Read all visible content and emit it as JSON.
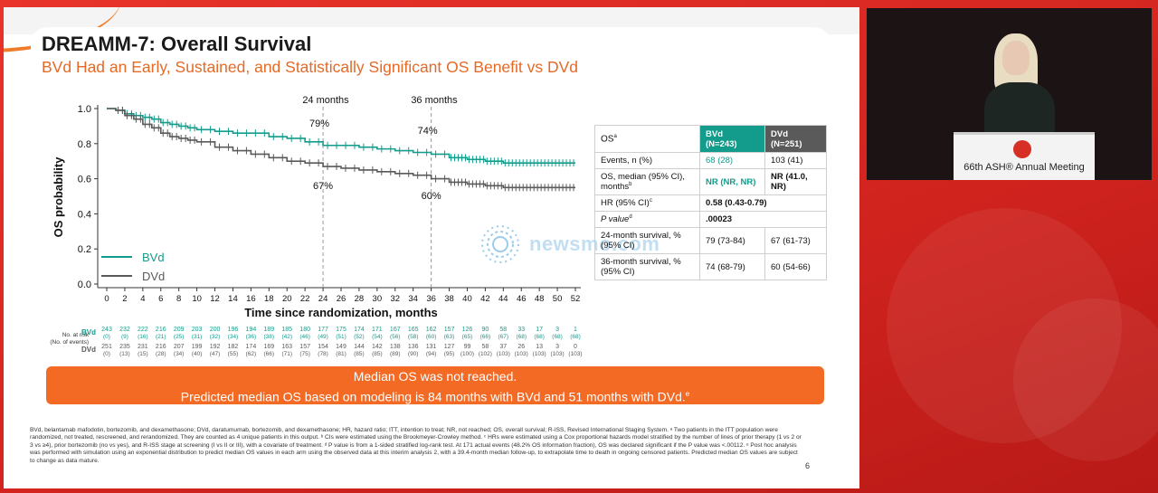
{
  "slide": {
    "title": "DREAMM-7: Overall Survival",
    "subtitle": "BVd Had an Early, Sustained, and Statistically Significant OS Benefit vs DVd",
    "page_number": "6",
    "accent_color": "#f26a24",
    "bvd_color": "#139c8b",
    "dvd_color": "#5a5a5a"
  },
  "chart_data": {
    "type": "line",
    "title": "",
    "xlabel": "Time since randomization, months",
    "ylabel": "OS probability",
    "xlim": [
      0,
      52
    ],
    "ylim": [
      0,
      1.0
    ],
    "x_ticks": [
      0,
      2,
      4,
      6,
      8,
      10,
      12,
      14,
      16,
      18,
      20,
      22,
      24,
      26,
      28,
      30,
      32,
      34,
      36,
      38,
      40,
      42,
      44,
      46,
      48,
      50,
      52
    ],
    "y_ticks": [
      "0.0",
      "0.2",
      "0.4",
      "0.6",
      "0.8",
      "1.0"
    ],
    "legend": [
      "BVd",
      "DVd"
    ],
    "legend_position": "bottom-left",
    "series": [
      {
        "name": "BVd",
        "color": "#139c8b",
        "x": [
          0,
          1,
          2,
          3,
          4,
          5,
          6,
          7,
          8,
          9,
          10,
          12,
          14,
          16,
          18,
          20,
          22,
          24,
          26,
          28,
          30,
          32,
          34,
          36,
          38,
          40,
          42,
          44,
          46,
          48,
          50,
          52
        ],
        "y": [
          1.0,
          0.99,
          0.97,
          0.96,
          0.95,
          0.94,
          0.92,
          0.91,
          0.9,
          0.89,
          0.88,
          0.87,
          0.86,
          0.86,
          0.84,
          0.83,
          0.81,
          0.79,
          0.79,
          0.78,
          0.77,
          0.76,
          0.75,
          0.74,
          0.72,
          0.71,
          0.7,
          0.69,
          0.69,
          0.69,
          0.69,
          0.69
        ]
      },
      {
        "name": "DVd",
        "color": "#5a5a5a",
        "x": [
          0,
          1,
          2,
          3,
          4,
          5,
          6,
          7,
          8,
          9,
          10,
          12,
          14,
          16,
          18,
          20,
          22,
          24,
          26,
          28,
          30,
          32,
          34,
          36,
          38,
          40,
          42,
          44,
          46,
          48,
          50,
          52
        ],
        "y": [
          1.0,
          0.99,
          0.96,
          0.94,
          0.91,
          0.89,
          0.86,
          0.84,
          0.83,
          0.82,
          0.81,
          0.78,
          0.76,
          0.74,
          0.72,
          0.7,
          0.69,
          0.67,
          0.66,
          0.65,
          0.64,
          0.63,
          0.62,
          0.6,
          0.58,
          0.57,
          0.56,
          0.55,
          0.55,
          0.55,
          0.55,
          0.55
        ]
      }
    ],
    "annotations": [
      {
        "label": "24 months",
        "x": 24,
        "bvd": "79%",
        "dvd": "67%"
      },
      {
        "label": "36 months",
        "x": 36,
        "bvd": "74%",
        "dvd": "60%"
      }
    ],
    "risk_table": {
      "header": "No. at risk",
      "header_sub": "(No. of events)",
      "rows": [
        {
          "name": "BVd",
          "n": [
            "243",
            "232",
            "222",
            "216",
            "209",
            "203",
            "200",
            "196",
            "194",
            "189",
            "185",
            "180",
            "177",
            "175",
            "174",
            "171",
            "167",
            "165",
            "162",
            "157",
            "126",
            "90",
            "58",
            "33",
            "17",
            "3",
            "1"
          ],
          "events": [
            "(0)",
            "(9)",
            "(16)",
            "(21)",
            "(25)",
            "(31)",
            "(32)",
            "(34)",
            "(36)",
            "(38)",
            "(42)",
            "(46)",
            "(49)",
            "(51)",
            "(52)",
            "(54)",
            "(56)",
            "(58)",
            "(60)",
            "(63)",
            "(65)",
            "(66)",
            "(67)",
            "(68)",
            "(68)",
            "(68)",
            "(68)"
          ]
        },
        {
          "name": "DVd",
          "n": [
            "251",
            "235",
            "231",
            "216",
            "207",
            "199",
            "192",
            "182",
            "174",
            "169",
            "163",
            "157",
            "154",
            "149",
            "144",
            "142",
            "138",
            "136",
            "131",
            "127",
            "99",
            "58",
            "37",
            "26",
            "13",
            "3",
            "0"
          ],
          "events": [
            "(0)",
            "(13)",
            "(15)",
            "(28)",
            "(34)",
            "(40)",
            "(47)",
            "(55)",
            "(62)",
            "(66)",
            "(71)",
            "(75)",
            "(78)",
            "(81)",
            "(85)",
            "(85)",
            "(89)",
            "(90)",
            "(94)",
            "(95)",
            "(100)",
            "(102)",
            "(103)",
            "(103)",
            "(103)",
            "(103)",
            "(103)"
          ]
        }
      ]
    }
  },
  "table": {
    "header": {
      "col1": "OS",
      "col1_sup": "a",
      "bvd": "BVd",
      "bvd_n": "(N=243)",
      "dvd": "DVd",
      "dvd_n": "(N=251)"
    },
    "rows": [
      {
        "label": "Events, n (%)",
        "bvd": "68 (28)",
        "dvd": "103 (41)"
      },
      {
        "label": "OS, median (95% CI), months",
        "label_sup": "b",
        "bvd": "NR (NR, NR)",
        "dvd": "NR (41.0, NR)"
      },
      {
        "label": "HR  (95% CI)",
        "label_sup": "c",
        "span": "0.58 (0.43-0.79)"
      },
      {
        "label": "P value",
        "label_sup": "d",
        "span": ".00023"
      },
      {
        "label": "24-month survival, % (95% CI)",
        "bvd": "79 (73-84)",
        "dvd": "67 (61-73)"
      },
      {
        "label": "36-month survival, % (95% CI)",
        "bvd": "74 (68-79)",
        "dvd": "60 (54-66)"
      }
    ]
  },
  "banner": {
    "line1": "Median OS was not reached.",
    "line2": "Predicted median OS based on modeling is 84 months with BVd and 51 months with DVd.",
    "line2_sup": "e"
  },
  "footnote": "BVd, belantamab mafodotin, bortezomib, and dexamethasone; DVd, daratumumab, bortezomib, and dexamethasone; HR, hazard ratio; ITT, intention to treat; NR, not reached; OS, overall survival; R-ISS, Revised International Staging System. ᵃ Two patients in the ITT population were randomized, not treated, rescreened, and rerandomized. They are counted as 4 unique patients in this output. ᵇ CIs were estimated using the Brookmeyer-Crowley method. ᶜ HRs were estimated using a Cox proportional hazards model stratified by the number of lines of prior therapy (1 vs 2 or 3 vs ≥4), prior bortezomib (no vs yes), and R-ISS stage at screening (I vs II or III), with a covariate of treatment. ᵈ P value is from a 1-sided stratified log-rank test. At 171 actual events (48.2% OS information fraction), OS was declared significant if the P value was <.00112. ᵉ Post hoc analysis was performed with simulation using an exponential distribution to predict median OS values in each arm using the observed data at this interim analysis 2, with a 39.4-month median follow-up, to extrapolate time to death in ongoing censored patients. Predicted median OS values are subject to change as data mature.",
  "watermark": {
    "text": "newsmo.com"
  },
  "video": {
    "podium_label": "66th ASH® Annual Meeting"
  }
}
